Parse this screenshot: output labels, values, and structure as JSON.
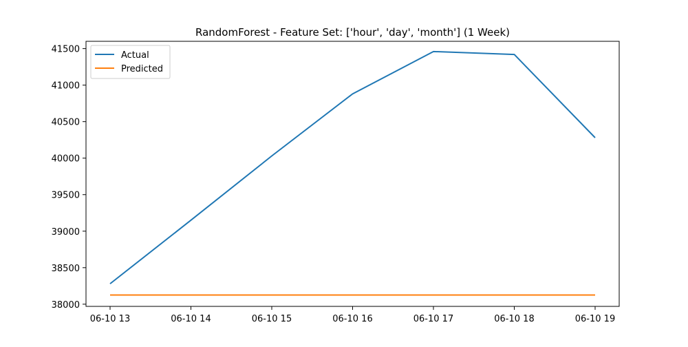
{
  "chart_data": {
    "type": "line",
    "title": "RandomForest - Feature Set: ['hour', 'day', 'month'] (1 Week)",
    "xlabel": "",
    "ylabel": "",
    "x": [
      "06-10 13",
      "06-10 14",
      "06-10 15",
      "06-10 16",
      "06-10 17",
      "06-10 18",
      "06-10 19"
    ],
    "y_ticks": [
      38000,
      38500,
      39000,
      39500,
      40000,
      40500,
      41000,
      41500
    ],
    "y_tick_labels": [
      "38000",
      "38500",
      "39000",
      "39500",
      "40000",
      "40500",
      "41000",
      "41500"
    ],
    "ylim": [
      37970,
      41600
    ],
    "grid": false,
    "legend_position": "upper-left",
    "series": [
      {
        "name": "Actual",
        "color": "#1f77b4",
        "values": [
          38280,
          39150,
          40030,
          40880,
          41460,
          41420,
          40280
        ]
      },
      {
        "name": "Predicted",
        "color": "#ff7f0e",
        "values": [
          38125,
          38125,
          38125,
          38125,
          38125,
          38125,
          38125
        ]
      }
    ]
  }
}
